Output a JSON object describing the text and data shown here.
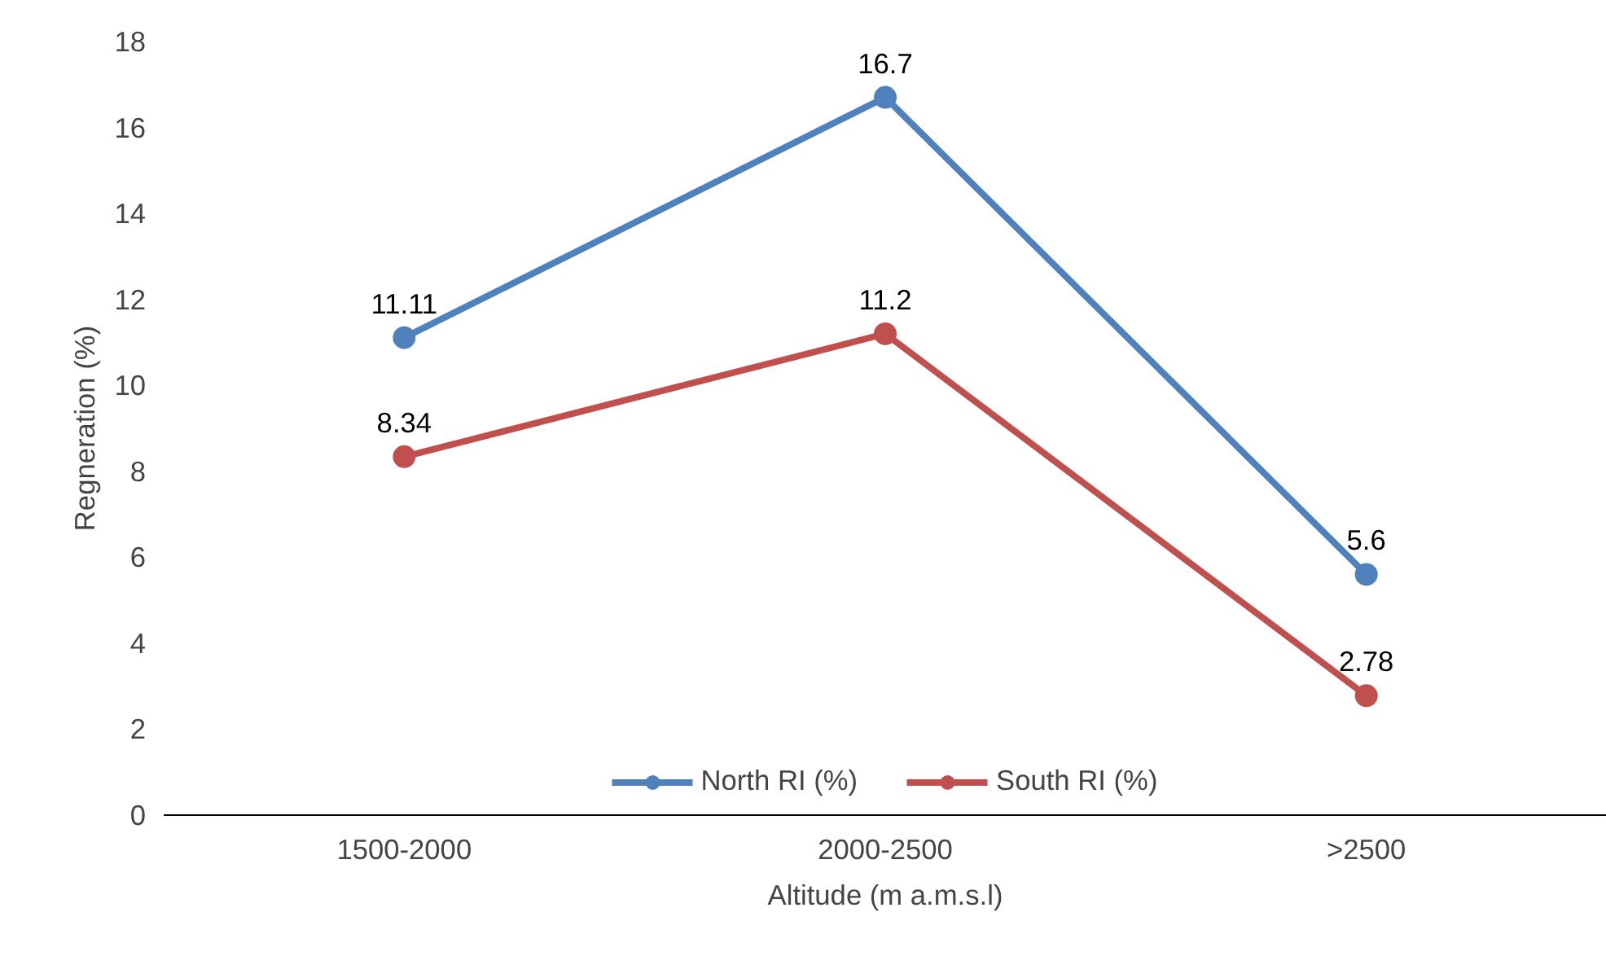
{
  "chart_data": {
    "type": "line",
    "xlabel": "Altitude (m a.m.s.l)",
    "ylabel": "Regneration (%)",
    "categories": [
      "1500-2000",
      "2000-2500",
      ">2500"
    ],
    "series": [
      {
        "name": "North RI (%)",
        "color": "#4f81bd",
        "values": [
          11.11,
          16.7,
          5.6
        ]
      },
      {
        "name": "South RI (%)",
        "color": "#c0504d",
        "values": [
          8.34,
          11.2,
          2.78
        ]
      }
    ],
    "ylim": [
      0,
      18
    ],
    "yticks": [
      0,
      2,
      4,
      6,
      8,
      10,
      12,
      14,
      16,
      18
    ],
    "grid": false,
    "legend": "bottom",
    "marker": "circle",
    "line_style": "solid",
    "data_labels": true
  }
}
